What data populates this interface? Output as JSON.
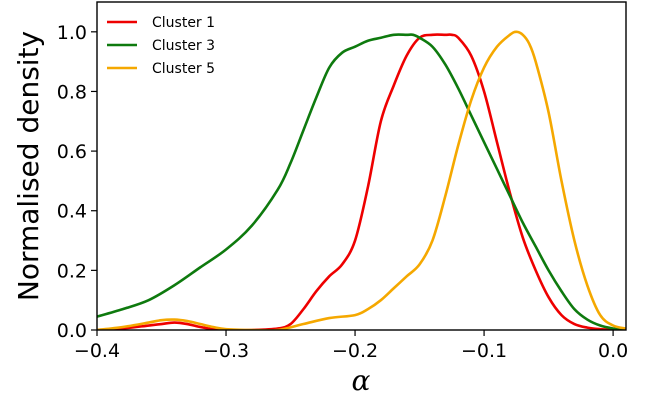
{
  "chart_data": {
    "type": "line",
    "title": "",
    "xlabel": "α",
    "ylabel": "Normalised density",
    "xlim": [
      -0.4,
      0.01
    ],
    "ylim": [
      0.0,
      1.1
    ],
    "xticks": [
      -0.4,
      -0.3,
      -0.2,
      -0.1,
      0.0
    ],
    "xtick_labels": [
      "−0.4",
      "−0.3",
      "−0.2",
      "−0.1",
      "0.0"
    ],
    "yticks": [
      0.0,
      0.2,
      0.4,
      0.6,
      0.8,
      1.0
    ],
    "ytick_labels": [
      "0.0",
      "0.2",
      "0.4",
      "0.6",
      "0.8",
      "1.0"
    ],
    "grid": false,
    "legend_position": "top-left",
    "series": [
      {
        "name": "Cluster 1",
        "color": "#ee0000",
        "x": [
          -0.4,
          -0.38,
          -0.36,
          -0.35,
          -0.34,
          -0.33,
          -0.32,
          -0.31,
          -0.3,
          -0.28,
          -0.26,
          -0.25,
          -0.24,
          -0.23,
          -0.22,
          -0.21,
          -0.2,
          -0.19,
          -0.18,
          -0.17,
          -0.16,
          -0.15,
          -0.14,
          -0.13,
          -0.125,
          -0.12,
          -0.11,
          -0.1,
          -0.09,
          -0.08,
          -0.07,
          -0.06,
          -0.05,
          -0.04,
          -0.03,
          -0.02,
          -0.01,
          0.0,
          0.01
        ],
        "y": [
          0.0,
          0.005,
          0.015,
          0.02,
          0.025,
          0.02,
          0.01,
          0.003,
          0.0,
          0.0,
          0.005,
          0.02,
          0.07,
          0.13,
          0.18,
          0.22,
          0.3,
          0.48,
          0.7,
          0.82,
          0.92,
          0.98,
          0.99,
          0.99,
          0.99,
          0.98,
          0.92,
          0.8,
          0.63,
          0.46,
          0.31,
          0.2,
          0.11,
          0.05,
          0.02,
          0.008,
          0.003,
          0.001,
          0.0
        ]
      },
      {
        "name": "Cluster 3",
        "color": "#0e7a0e",
        "x": [
          -0.4,
          -0.38,
          -0.36,
          -0.34,
          -0.32,
          -0.3,
          -0.28,
          -0.26,
          -0.25,
          -0.24,
          -0.23,
          -0.22,
          -0.21,
          -0.2,
          -0.19,
          -0.18,
          -0.17,
          -0.16,
          -0.155,
          -0.15,
          -0.14,
          -0.13,
          -0.12,
          -0.11,
          -0.1,
          -0.09,
          -0.08,
          -0.07,
          -0.06,
          -0.05,
          -0.04,
          -0.03,
          -0.02,
          -0.01,
          0.0,
          0.01
        ],
        "y": [
          0.045,
          0.07,
          0.1,
          0.15,
          0.21,
          0.27,
          0.35,
          0.47,
          0.56,
          0.67,
          0.78,
          0.88,
          0.93,
          0.95,
          0.97,
          0.98,
          0.99,
          0.99,
          0.99,
          0.98,
          0.95,
          0.89,
          0.81,
          0.72,
          0.63,
          0.54,
          0.45,
          0.36,
          0.28,
          0.2,
          0.13,
          0.07,
          0.035,
          0.015,
          0.005,
          0.0
        ]
      },
      {
        "name": "Cluster 5",
        "color": "#f5a800",
        "x": [
          -0.4,
          -0.38,
          -0.36,
          -0.35,
          -0.34,
          -0.33,
          -0.32,
          -0.31,
          -0.3,
          -0.28,
          -0.26,
          -0.24,
          -0.22,
          -0.2,
          -0.19,
          -0.18,
          -0.17,
          -0.16,
          -0.15,
          -0.14,
          -0.13,
          -0.12,
          -0.11,
          -0.1,
          -0.09,
          -0.08,
          -0.075,
          -0.07,
          -0.065,
          -0.06,
          -0.05,
          -0.04,
          -0.03,
          -0.02,
          -0.01,
          0.0,
          0.01
        ],
        "y": [
          0.0,
          0.01,
          0.025,
          0.033,
          0.035,
          0.03,
          0.02,
          0.01,
          0.003,
          0.0,
          0.0,
          0.02,
          0.04,
          0.05,
          0.07,
          0.1,
          0.14,
          0.18,
          0.22,
          0.3,
          0.45,
          0.62,
          0.77,
          0.88,
          0.95,
          0.99,
          1.0,
          0.99,
          0.96,
          0.9,
          0.73,
          0.5,
          0.3,
          0.15,
          0.05,
          0.015,
          0.005
        ]
      }
    ]
  }
}
